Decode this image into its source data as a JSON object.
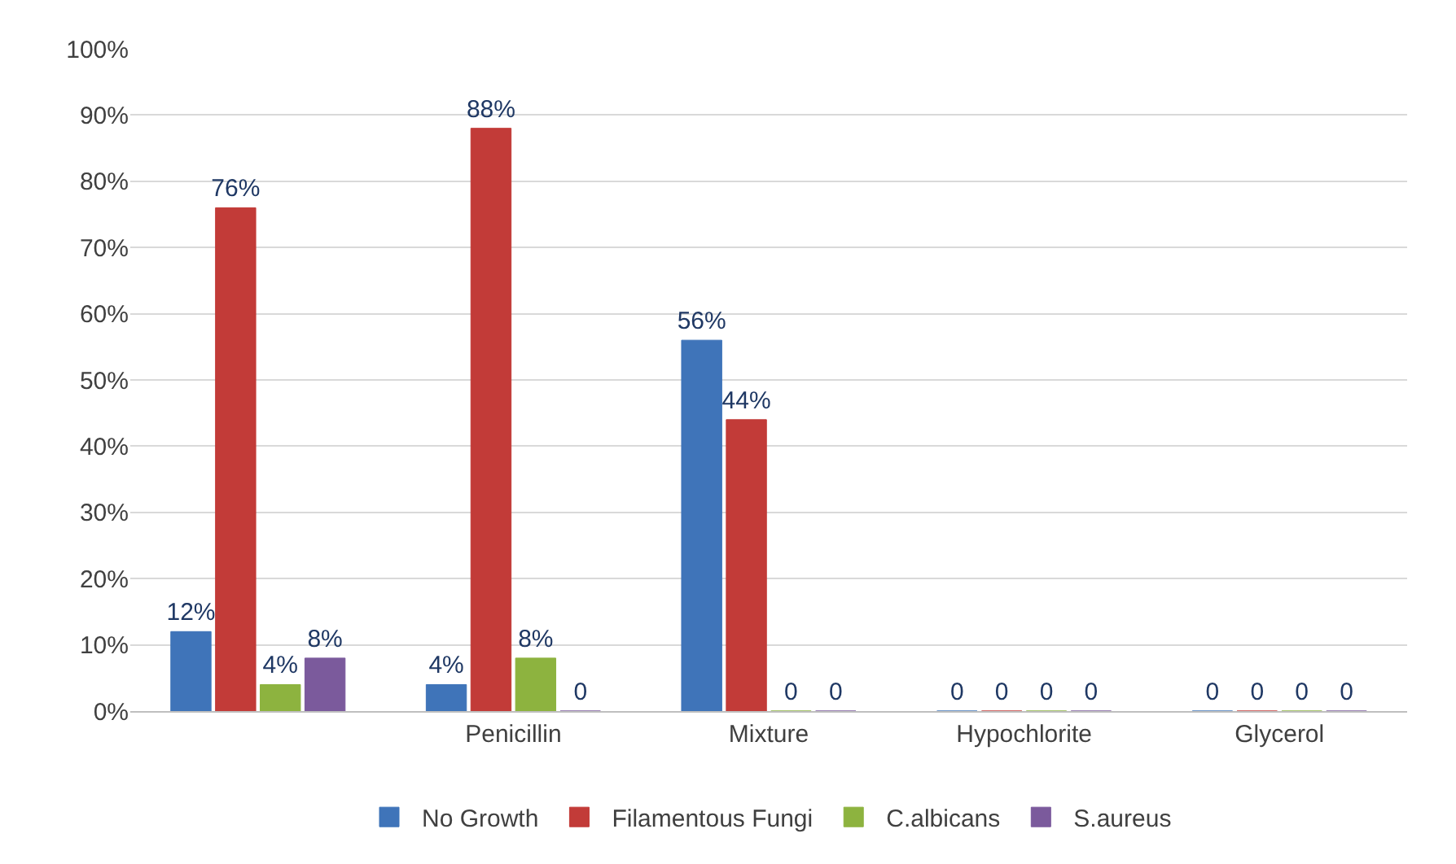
{
  "chart_data": {
    "type": "bar",
    "categories": [
      null,
      "Penicillin",
      "Mixture",
      "Hypochlorite",
      "Glycerol"
    ],
    "series": [
      {
        "name": "No Growth",
        "color": "#3f74b9",
        "values": [
          12,
          4,
          56,
          0,
          0
        ],
        "value_labels": [
          "12%",
          "4%",
          "56%",
          "0",
          "0"
        ]
      },
      {
        "name": "Filamentous Fungi",
        "color": "#c23b38",
        "values": [
          76,
          88,
          44,
          0,
          0
        ],
        "value_labels": [
          "76%",
          "88%",
          "44%",
          "0",
          "0"
        ]
      },
      {
        "name": "C.albicans",
        "color": "#8db33f",
        "values": [
          4,
          8,
          0,
          0,
          0
        ],
        "value_labels": [
          "4%",
          "8%",
          "0",
          "0",
          "0"
        ]
      },
      {
        "name": "S.aureus",
        "color": "#7b5a9c",
        "values": [
          8,
          0,
          0,
          0,
          0
        ],
        "value_labels": [
          "8%",
          "0",
          "0",
          "0",
          "0"
        ]
      }
    ],
    "ylim": [
      0,
      100
    ],
    "yticks": [
      {
        "value": 0,
        "label": "0%"
      },
      {
        "value": 10,
        "label": "10%"
      },
      {
        "value": 20,
        "label": "20%"
      },
      {
        "value": 30,
        "label": "30%"
      },
      {
        "value": 40,
        "label": "40%"
      },
      {
        "value": 50,
        "label": "50%"
      },
      {
        "value": 60,
        "label": "60%"
      },
      {
        "value": 70,
        "label": "70%"
      },
      {
        "value": 80,
        "label": "80%"
      },
      {
        "value": 90,
        "label": "90%"
      },
      {
        "value": 100,
        "label": "100%"
      }
    ],
    "grid": "y",
    "legend": "bottom"
  }
}
